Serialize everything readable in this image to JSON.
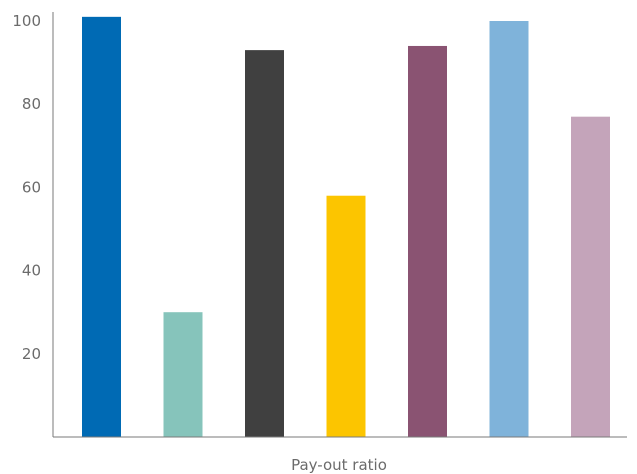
{
  "chart_data": {
    "type": "bar",
    "xlabel": "Pay-out ratio",
    "ylabel": "",
    "ylim": [
      0,
      100
    ],
    "yticks": [
      20,
      40,
      60,
      80,
      100
    ],
    "grid": false,
    "bars": [
      {
        "value": 101,
        "color": "#006ab4"
      },
      {
        "value": 30,
        "color": "#86c4bb"
      },
      {
        "value": 93,
        "color": "#404040"
      },
      {
        "value": 58,
        "color": "#fcc500"
      },
      {
        "value": 94,
        "color": "#8a5372"
      },
      {
        "value": 100,
        "color": "#7fb3da"
      },
      {
        "value": 77,
        "color": "#c4a4ba"
      }
    ]
  }
}
